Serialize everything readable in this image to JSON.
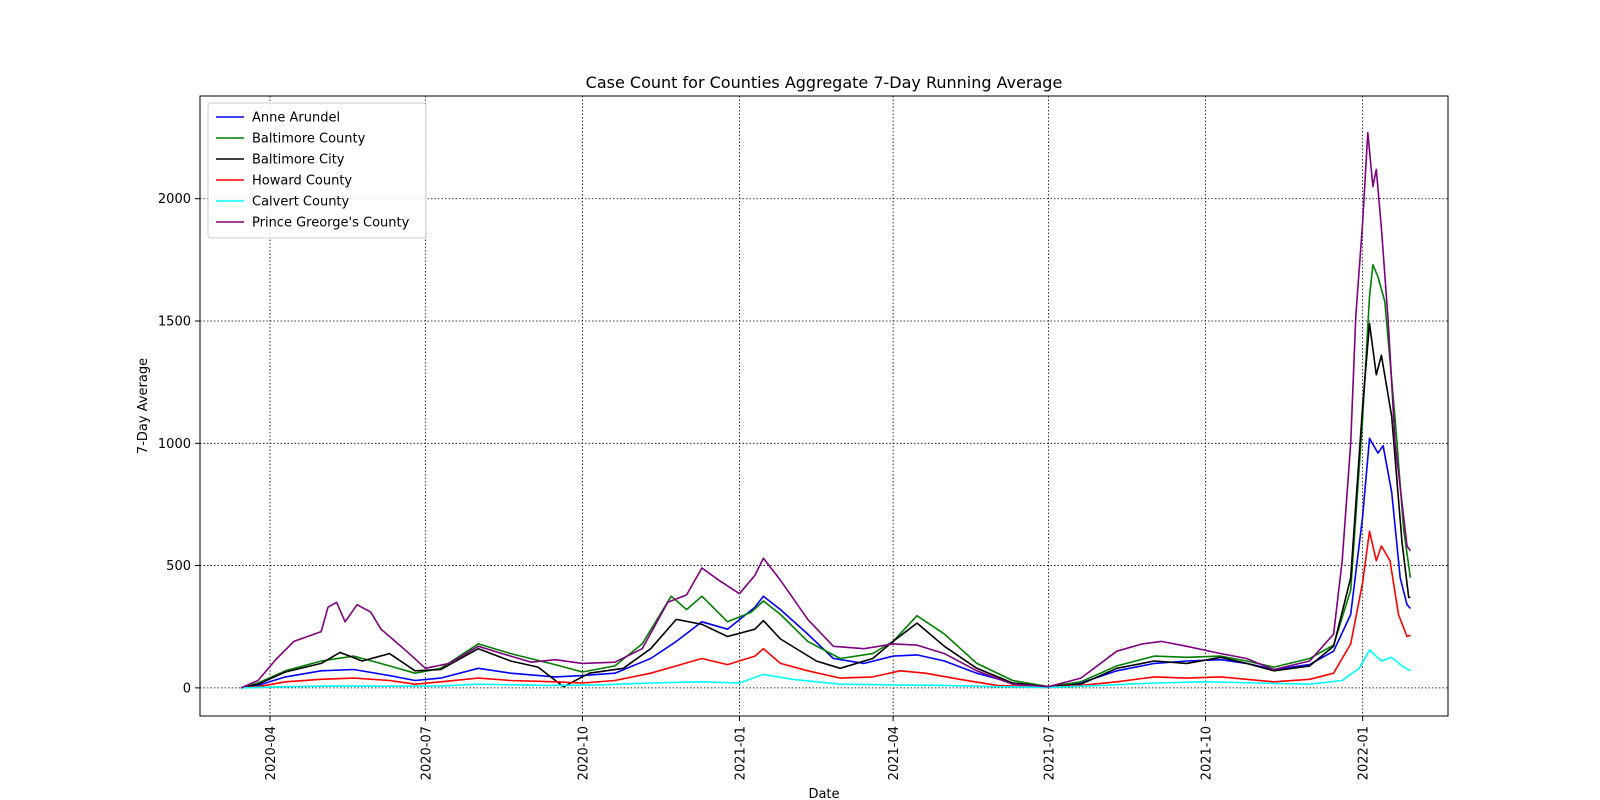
{
  "chart_data": {
    "type": "line",
    "title": "Case Count for Counties Aggregate 7-Day Running Average",
    "xlabel": "Date",
    "ylabel": "7-Day Average",
    "xlim": [
      "2020-02-20",
      "2022-02-20"
    ],
    "ylim": [
      -115,
      2420
    ],
    "grid": true,
    "legend_position": "upper-left",
    "x_ticks": [
      "2020-04",
      "2020-07",
      "2020-10",
      "2021-01",
      "2021-04",
      "2021-07",
      "2021-10",
      "2022-01"
    ],
    "y_ticks": [
      0,
      500,
      1000,
      1500,
      2000
    ],
    "series": [
      {
        "name": "Anne Arundel",
        "color": "#0000ff",
        "points": [
          [
            "2020-03-15",
            0
          ],
          [
            "2020-03-25",
            10
          ],
          [
            "2020-04-10",
            45
          ],
          [
            "2020-05-01",
            70
          ],
          [
            "2020-05-20",
            75
          ],
          [
            "2020-06-10",
            50
          ],
          [
            "2020-06-25",
            30
          ],
          [
            "2020-07-10",
            40
          ],
          [
            "2020-08-01",
            80
          ],
          [
            "2020-08-20",
            60
          ],
          [
            "2020-09-15",
            45
          ],
          [
            "2020-10-01",
            50
          ],
          [
            "2020-10-20",
            60
          ],
          [
            "2020-11-10",
            120
          ],
          [
            "2020-11-25",
            190
          ],
          [
            "2020-12-10",
            270
          ],
          [
            "2020-12-25",
            240
          ],
          [
            "2021-01-10",
            330
          ],
          [
            "2021-01-15",
            375
          ],
          [
            "2021-01-25",
            320
          ],
          [
            "2021-02-10",
            220
          ],
          [
            "2021-02-25",
            120
          ],
          [
            "2021-03-15",
            100
          ],
          [
            "2021-04-01",
            130
          ],
          [
            "2021-04-15",
            135
          ],
          [
            "2021-05-01",
            110
          ],
          [
            "2021-05-20",
            60
          ],
          [
            "2021-06-10",
            20
          ],
          [
            "2021-07-01",
            5
          ],
          [
            "2021-07-20",
            20
          ],
          [
            "2021-08-10",
            70
          ],
          [
            "2021-09-01",
            100
          ],
          [
            "2021-09-20",
            110
          ],
          [
            "2021-10-10",
            115
          ],
          [
            "2021-10-25",
            100
          ],
          [
            "2021-11-10",
            75
          ],
          [
            "2021-12-01",
            95
          ],
          [
            "2021-12-15",
            150
          ],
          [
            "2021-12-25",
            300
          ],
          [
            "2022-01-01",
            700
          ],
          [
            "2022-01-05",
            1020
          ],
          [
            "2022-01-10",
            960
          ],
          [
            "2022-01-13",
            990
          ],
          [
            "2022-01-18",
            800
          ],
          [
            "2022-01-23",
            450
          ],
          [
            "2022-01-27",
            340
          ],
          [
            "2022-01-29",
            325
          ]
        ]
      },
      {
        "name": "Baltimore County",
        "color": "#008000",
        "points": [
          [
            "2020-03-15",
            0
          ],
          [
            "2020-03-25",
            20
          ],
          [
            "2020-04-10",
            70
          ],
          [
            "2020-05-01",
            110
          ],
          [
            "2020-05-20",
            130
          ],
          [
            "2020-06-10",
            90
          ],
          [
            "2020-06-25",
            60
          ],
          [
            "2020-07-10",
            80
          ],
          [
            "2020-08-01",
            180
          ],
          [
            "2020-08-20",
            140
          ],
          [
            "2020-09-15",
            95
          ],
          [
            "2020-10-01",
            65
          ],
          [
            "2020-10-20",
            90
          ],
          [
            "2020-11-05",
            180
          ],
          [
            "2020-11-22",
            375
          ],
          [
            "2020-12-01",
            320
          ],
          [
            "2020-12-10",
            375
          ],
          [
            "2020-12-25",
            270
          ],
          [
            "2021-01-08",
            310
          ],
          [
            "2021-01-15",
            355
          ],
          [
            "2021-01-25",
            300
          ],
          [
            "2021-02-10",
            190
          ],
          [
            "2021-03-01",
            120
          ],
          [
            "2021-03-20",
            140
          ],
          [
            "2021-04-01",
            190
          ],
          [
            "2021-04-15",
            295
          ],
          [
            "2021-05-01",
            220
          ],
          [
            "2021-05-20",
            100
          ],
          [
            "2021-06-10",
            30
          ],
          [
            "2021-07-01",
            5
          ],
          [
            "2021-07-20",
            25
          ],
          [
            "2021-08-10",
            90
          ],
          [
            "2021-09-01",
            130
          ],
          [
            "2021-09-20",
            125
          ],
          [
            "2021-10-10",
            130
          ],
          [
            "2021-10-25",
            110
          ],
          [
            "2021-11-10",
            85
          ],
          [
            "2021-12-01",
            120
          ],
          [
            "2021-12-15",
            175
          ],
          [
            "2021-12-25",
            400
          ],
          [
            "2022-01-01",
            1100
          ],
          [
            "2022-01-05",
            1600
          ],
          [
            "2022-01-07",
            1730
          ],
          [
            "2022-01-10",
            1680
          ],
          [
            "2022-01-14",
            1580
          ],
          [
            "2022-01-20",
            1100
          ],
          [
            "2022-01-25",
            650
          ],
          [
            "2022-01-29",
            450
          ]
        ]
      },
      {
        "name": "Baltimore City",
        "color": "#000000",
        "points": [
          [
            "2020-03-15",
            0
          ],
          [
            "2020-03-25",
            15
          ],
          [
            "2020-04-10",
            65
          ],
          [
            "2020-05-01",
            100
          ],
          [
            "2020-05-12",
            145
          ],
          [
            "2020-05-25",
            110
          ],
          [
            "2020-06-10",
            140
          ],
          [
            "2020-06-25",
            70
          ],
          [
            "2020-07-10",
            75
          ],
          [
            "2020-08-01",
            160
          ],
          [
            "2020-08-20",
            110
          ],
          [
            "2020-09-05",
            85
          ],
          [
            "2020-09-20",
            5
          ],
          [
            "2020-10-05",
            60
          ],
          [
            "2020-10-25",
            80
          ],
          [
            "2020-11-10",
            160
          ],
          [
            "2020-11-25",
            280
          ],
          [
            "2020-12-10",
            260
          ],
          [
            "2020-12-25",
            210
          ],
          [
            "2021-01-10",
            240
          ],
          [
            "2021-01-15",
            275
          ],
          [
            "2021-01-25",
            200
          ],
          [
            "2021-02-15",
            110
          ],
          [
            "2021-03-01",
            80
          ],
          [
            "2021-03-20",
            120
          ],
          [
            "2021-04-01",
            190
          ],
          [
            "2021-04-15",
            265
          ],
          [
            "2021-05-01",
            170
          ],
          [
            "2021-05-20",
            80
          ],
          [
            "2021-06-10",
            20
          ],
          [
            "2021-07-01",
            5
          ],
          [
            "2021-07-20",
            15
          ],
          [
            "2021-08-10",
            80
          ],
          [
            "2021-09-01",
            110
          ],
          [
            "2021-09-20",
            100
          ],
          [
            "2021-10-10",
            125
          ],
          [
            "2021-10-25",
            100
          ],
          [
            "2021-11-10",
            70
          ],
          [
            "2021-12-01",
            90
          ],
          [
            "2021-12-15",
            170
          ],
          [
            "2021-12-25",
            450
          ],
          [
            "2022-01-01",
            1150
          ],
          [
            "2022-01-05",
            1490
          ],
          [
            "2022-01-09",
            1280
          ],
          [
            "2022-01-12",
            1360
          ],
          [
            "2022-01-18",
            1110
          ],
          [
            "2022-01-24",
            600
          ],
          [
            "2022-01-28",
            370
          ],
          [
            "2022-01-29",
            370
          ]
        ]
      },
      {
        "name": "Howard County",
        "color": "#ff0000",
        "points": [
          [
            "2020-03-15",
            0
          ],
          [
            "2020-03-25",
            5
          ],
          [
            "2020-04-10",
            25
          ],
          [
            "2020-05-01",
            35
          ],
          [
            "2020-05-20",
            40
          ],
          [
            "2020-06-10",
            30
          ],
          [
            "2020-06-25",
            15
          ],
          [
            "2020-07-10",
            25
          ],
          [
            "2020-08-01",
            40
          ],
          [
            "2020-08-20",
            30
          ],
          [
            "2020-09-15",
            25
          ],
          [
            "2020-10-01",
            20
          ],
          [
            "2020-10-20",
            30
          ],
          [
            "2020-11-10",
            60
          ],
          [
            "2020-11-25",
            90
          ],
          [
            "2020-12-10",
            120
          ],
          [
            "2020-12-25",
            95
          ],
          [
            "2021-01-10",
            130
          ],
          [
            "2021-01-15",
            160
          ],
          [
            "2021-01-25",
            100
          ],
          [
            "2021-02-10",
            70
          ],
          [
            "2021-03-01",
            40
          ],
          [
            "2021-03-20",
            45
          ],
          [
            "2021-04-05",
            70
          ],
          [
            "2021-04-20",
            60
          ],
          [
            "2021-05-10",
            35
          ],
          [
            "2021-06-01",
            10
          ],
          [
            "2021-07-01",
            2
          ],
          [
            "2021-07-20",
            10
          ],
          [
            "2021-08-10",
            25
          ],
          [
            "2021-09-01",
            45
          ],
          [
            "2021-09-20",
            40
          ],
          [
            "2021-10-10",
            45
          ],
          [
            "2021-10-25",
            35
          ],
          [
            "2021-11-10",
            25
          ],
          [
            "2021-12-01",
            35
          ],
          [
            "2021-12-15",
            60
          ],
          [
            "2021-12-25",
            180
          ],
          [
            "2022-01-01",
            430
          ],
          [
            "2022-01-05",
            640
          ],
          [
            "2022-01-09",
            520
          ],
          [
            "2022-01-12",
            580
          ],
          [
            "2022-01-17",
            520
          ],
          [
            "2022-01-22",
            300
          ],
          [
            "2022-01-27",
            210
          ],
          [
            "2022-01-29",
            215
          ]
        ]
      },
      {
        "name": "Calvert County",
        "color": "#00ffff",
        "points": [
          [
            "2020-03-15",
            0
          ],
          [
            "2020-04-10",
            5
          ],
          [
            "2020-05-10",
            8
          ],
          [
            "2020-06-10",
            7
          ],
          [
            "2020-07-10",
            8
          ],
          [
            "2020-08-01",
            15
          ],
          [
            "2020-09-10",
            10
          ],
          [
            "2020-10-10",
            12
          ],
          [
            "2020-11-10",
            20
          ],
          [
            "2020-12-10",
            25
          ],
          [
            "2021-01-01",
            20
          ],
          [
            "2021-01-15",
            55
          ],
          [
            "2021-02-01",
            35
          ],
          [
            "2021-03-01",
            15
          ],
          [
            "2021-04-01",
            12
          ],
          [
            "2021-05-01",
            10
          ],
          [
            "2021-06-01",
            5
          ],
          [
            "2021-07-01",
            2
          ],
          [
            "2021-08-01",
            10
          ],
          [
            "2021-09-01",
            20
          ],
          [
            "2021-10-01",
            25
          ],
          [
            "2021-11-01",
            20
          ],
          [
            "2021-12-01",
            15
          ],
          [
            "2021-12-20",
            30
          ],
          [
            "2021-12-30",
            80
          ],
          [
            "2022-01-05",
            155
          ],
          [
            "2022-01-12",
            110
          ],
          [
            "2022-01-18",
            125
          ],
          [
            "2022-01-24",
            90
          ],
          [
            "2022-01-29",
            70
          ]
        ]
      },
      {
        "name": "Prince Greorge's County",
        "color": "#800080",
        "points": [
          [
            "2020-03-15",
            0
          ],
          [
            "2020-03-25",
            30
          ],
          [
            "2020-04-05",
            120
          ],
          [
            "2020-04-15",
            190
          ],
          [
            "2020-05-01",
            230
          ],
          [
            "2020-05-05",
            330
          ],
          [
            "2020-05-10",
            350
          ],
          [
            "2020-05-15",
            270
          ],
          [
            "2020-05-22",
            340
          ],
          [
            "2020-05-30",
            310
          ],
          [
            "2020-06-05",
            240
          ],
          [
            "2020-06-20",
            150
          ],
          [
            "2020-07-01",
            80
          ],
          [
            "2020-07-15",
            100
          ],
          [
            "2020-08-01",
            170
          ],
          [
            "2020-08-15",
            140
          ],
          [
            "2020-09-01",
            105
          ],
          [
            "2020-09-15",
            115
          ],
          [
            "2020-10-01",
            100
          ],
          [
            "2020-10-20",
            105
          ],
          [
            "2020-11-05",
            160
          ],
          [
            "2020-11-20",
            350
          ],
          [
            "2020-12-01",
            380
          ],
          [
            "2020-12-10",
            490
          ],
          [
            "2020-12-20",
            440
          ],
          [
            "2021-01-01",
            385
          ],
          [
            "2021-01-10",
            460
          ],
          [
            "2021-01-15",
            530
          ],
          [
            "2021-01-25",
            440
          ],
          [
            "2021-02-10",
            280
          ],
          [
            "2021-02-25",
            170
          ],
          [
            "2021-03-15",
            160
          ],
          [
            "2021-04-01",
            180
          ],
          [
            "2021-04-15",
            175
          ],
          [
            "2021-05-01",
            140
          ],
          [
            "2021-05-20",
            70
          ],
          [
            "2021-06-10",
            15
          ],
          [
            "2021-07-01",
            5
          ],
          [
            "2021-07-20",
            40
          ],
          [
            "2021-08-10",
            150
          ],
          [
            "2021-08-25",
            180
          ],
          [
            "2021-09-05",
            190
          ],
          [
            "2021-09-20",
            170
          ],
          [
            "2021-10-10",
            140
          ],
          [
            "2021-10-25",
            120
          ],
          [
            "2021-11-10",
            75
          ],
          [
            "2021-12-01",
            110
          ],
          [
            "2021-12-15",
            220
          ],
          [
            "2021-12-20",
            520
          ],
          [
            "2021-12-25",
            1000
          ],
          [
            "2021-12-28",
            1520
          ],
          [
            "2022-01-01",
            1900
          ],
          [
            "2022-01-04",
            2270
          ],
          [
            "2022-01-07",
            2050
          ],
          [
            "2022-01-09",
            2120
          ],
          [
            "2022-01-12",
            1880
          ],
          [
            "2022-01-16",
            1500
          ],
          [
            "2022-01-20",
            1000
          ],
          [
            "2022-01-25",
            700
          ],
          [
            "2022-01-27",
            580
          ],
          [
            "2022-01-29",
            560
          ]
        ]
      }
    ]
  }
}
